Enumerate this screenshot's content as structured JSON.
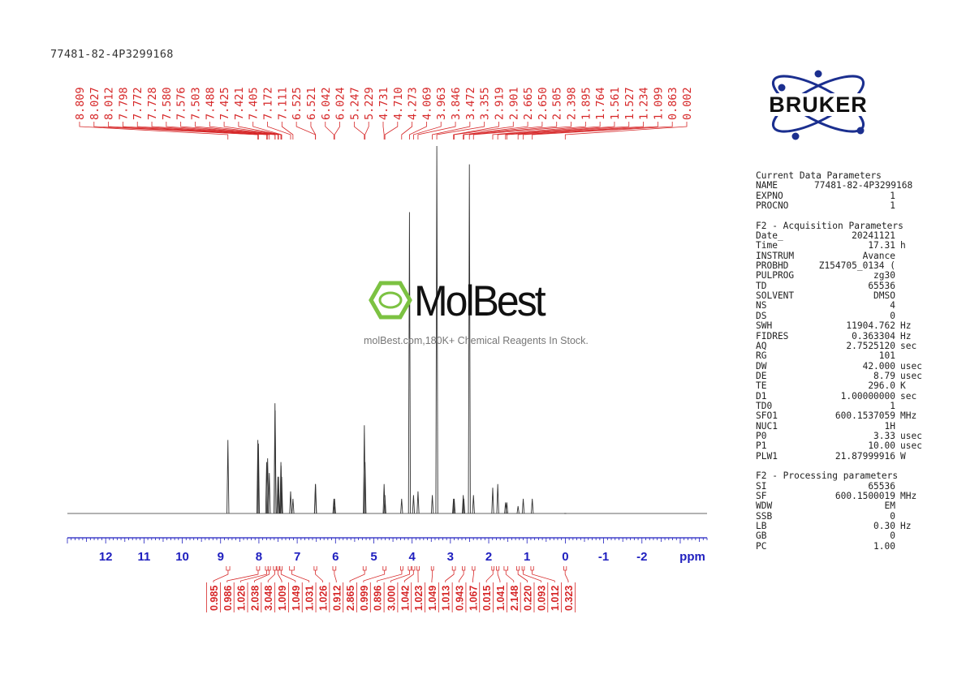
{
  "sample_title": "77481-82-4P3299168",
  "brand": {
    "logo_text": "BRUKER",
    "color": "#1b2f8f"
  },
  "watermark": {
    "logo_text": "MolBest",
    "tagline": "molBest.com,180K+ Chemical Reagents In Stock.",
    "accent": "#7cc242"
  },
  "colors": {
    "peak_labels": "#d62728",
    "axis": "#1f1fbf",
    "spectrum": "#333333"
  },
  "parameters": {
    "current": {
      "heading": "Current Data Parameters",
      "rows": [
        {
          "name": "NAME",
          "value": "77481-82-4P3299168",
          "unit": ""
        },
        {
          "name": "EXPNO",
          "value": "1",
          "unit": ""
        },
        {
          "name": "PROCNO",
          "value": "1",
          "unit": ""
        }
      ]
    },
    "acquisition": {
      "heading": "F2 - Acquisition Parameters",
      "rows": [
        {
          "name": "Date_",
          "value": "20241121",
          "unit": ""
        },
        {
          "name": "Time",
          "value": "17.31",
          "unit": "h"
        },
        {
          "name": "INSTRUM",
          "value": "Avance",
          "unit": ""
        },
        {
          "name": "PROBHD",
          "value": "Z154705_0134 (",
          "unit": ""
        },
        {
          "name": "PULPROG",
          "value": "zg30",
          "unit": ""
        },
        {
          "name": "TD",
          "value": "65536",
          "unit": ""
        },
        {
          "name": "SOLVENT",
          "value": "DMSO",
          "unit": ""
        },
        {
          "name": "NS",
          "value": "4",
          "unit": ""
        },
        {
          "name": "DS",
          "value": "0",
          "unit": ""
        },
        {
          "name": "SWH",
          "value": "11904.762",
          "unit": "Hz"
        },
        {
          "name": "FIDRES",
          "value": "0.363304",
          "unit": "Hz"
        },
        {
          "name": "AQ",
          "value": "2.7525120",
          "unit": "sec"
        },
        {
          "name": "RG",
          "value": "101",
          "unit": ""
        },
        {
          "name": "DW",
          "value": "42.000",
          "unit": "usec"
        },
        {
          "name": "DE",
          "value": "8.79",
          "unit": "usec"
        },
        {
          "name": "TE",
          "value": "296.0",
          "unit": "K"
        },
        {
          "name": "D1",
          "value": "1.00000000",
          "unit": "sec"
        },
        {
          "name": "TD0",
          "value": "1",
          "unit": ""
        },
        {
          "name": "SFO1",
          "value": "600.1537059",
          "unit": "MHz"
        },
        {
          "name": "NUC1",
          "value": "1H",
          "unit": ""
        },
        {
          "name": "P0",
          "value": "3.33",
          "unit": "usec"
        },
        {
          "name": "P1",
          "value": "10.00",
          "unit": "usec"
        },
        {
          "name": "PLW1",
          "value": "21.87999916",
          "unit": "W"
        }
      ]
    },
    "processing": {
      "heading": "F2 - Processing parameters",
      "rows": [
        {
          "name": "SI",
          "value": "65536",
          "unit": ""
        },
        {
          "name": "SF",
          "value": "600.1500019",
          "unit": "MHz"
        },
        {
          "name": "WDW",
          "value": "EM",
          "unit": ""
        },
        {
          "name": "SSB",
          "value": "0",
          "unit": ""
        },
        {
          "name": "LB",
          "value": "0.30",
          "unit": "Hz"
        },
        {
          "name": "GB",
          "value": "0",
          "unit": ""
        },
        {
          "name": "PC",
          "value": "1.00",
          "unit": ""
        }
      ]
    }
  },
  "chart_data": {
    "type": "line",
    "xlabel": "ppm",
    "xlim": [
      13.0,
      -3.7
    ],
    "x_reversed": true,
    "x_ticks": [
      12,
      11,
      10,
      9,
      8,
      7,
      6,
      5,
      4,
      3,
      2,
      1,
      0,
      -1,
      -2
    ],
    "x_tick_labels": [
      "12",
      "11",
      "10",
      "9",
      "8",
      "7",
      "6",
      "5",
      "4",
      "3",
      "2",
      "1",
      "0",
      "-1",
      "-2"
    ],
    "peak_labels": [
      "8.809",
      "8.027",
      "8.012",
      "7.798",
      "7.772",
      "7.728",
      "7.580",
      "7.576",
      "7.503",
      "7.488",
      "7.425",
      "7.421",
      "7.405",
      "7.172",
      "7.111",
      "6.525",
      "6.521",
      "6.042",
      "6.024",
      "5.247",
      "5.229",
      "4.731",
      "4.710",
      "4.273",
      "4.069",
      "3.963",
      "3.846",
      "3.472",
      "3.355",
      "2.919",
      "2.901",
      "2.665",
      "2.650",
      "2.505",
      "2.398",
      "1.895",
      "1.764",
      "1.561",
      "1.527",
      "1.234",
      "1.099",
      "0.863",
      "0.002"
    ],
    "integrals": [
      {
        "from": 8.85,
        "to": 8.76,
        "value": "0.985"
      },
      {
        "from": 8.06,
        "to": 7.98,
        "value": "0.986"
      },
      {
        "from": 7.83,
        "to": 7.76,
        "value": "1.026"
      },
      {
        "from": 7.76,
        "to": 7.7,
        "value": "2.038"
      },
      {
        "from": 7.62,
        "to": 7.55,
        "value": "3.048"
      },
      {
        "from": 7.53,
        "to": 7.47,
        "value": "1.009"
      },
      {
        "from": 7.45,
        "to": 7.39,
        "value": "1.049"
      },
      {
        "from": 7.2,
        "to": 7.08,
        "value": "1.031"
      },
      {
        "from": 6.56,
        "to": 6.49,
        "value": "1.026"
      },
      {
        "from": 6.07,
        "to": 5.99,
        "value": "0.912"
      },
      {
        "from": 5.28,
        "to": 5.2,
        "value": "2.865"
      },
      {
        "from": 4.76,
        "to": 4.68,
        "value": "0.999"
      },
      {
        "from": 4.3,
        "to": 4.24,
        "value": "0.896"
      },
      {
        "from": 4.1,
        "to": 4.03,
        "value": "3.000"
      },
      {
        "from": 4.0,
        "to": 3.93,
        "value": "1.042"
      },
      {
        "from": 3.88,
        "to": 3.81,
        "value": "1.023"
      },
      {
        "from": 3.5,
        "to": 3.44,
        "value": "1.049"
      },
      {
        "from": 2.95,
        "to": 2.87,
        "value": "1.013"
      },
      {
        "from": 2.69,
        "to": 2.62,
        "value": "0.943"
      },
      {
        "from": 2.43,
        "to": 2.36,
        "value": "1.067"
      },
      {
        "from": 1.92,
        "to": 1.86,
        "value": "0.015"
      },
      {
        "from": 1.8,
        "to": 1.73,
        "value": "1.041"
      },
      {
        "from": 1.6,
        "to": 1.5,
        "value": "2.148"
      },
      {
        "from": 1.27,
        "to": 1.2,
        "value": "0.220"
      },
      {
        "from": 1.13,
        "to": 1.07,
        "value": "0.093"
      },
      {
        "from": 0.9,
        "to": 0.83,
        "value": "1.012"
      },
      {
        "from": 0.04,
        "to": -0.03,
        "value": "0.323"
      }
    ],
    "peaks": [
      {
        "x": 8.809,
        "y": 0.2
      },
      {
        "x": 8.027,
        "y": 0.2
      },
      {
        "x": 8.012,
        "y": 0.19
      },
      {
        "x": 7.798,
        "y": 0.14
      },
      {
        "x": 7.772,
        "y": 0.15
      },
      {
        "x": 7.728,
        "y": 0.11
      },
      {
        "x": 7.58,
        "y": 0.3
      },
      {
        "x": 7.576,
        "y": 0.28
      },
      {
        "x": 7.503,
        "y": 0.1
      },
      {
        "x": 7.488,
        "y": 0.1
      },
      {
        "x": 7.425,
        "y": 0.14
      },
      {
        "x": 7.421,
        "y": 0.13
      },
      {
        "x": 7.405,
        "y": 0.1
      },
      {
        "x": 7.172,
        "y": 0.06
      },
      {
        "x": 7.111,
        "y": 0.04
      },
      {
        "x": 6.525,
        "y": 0.08
      },
      {
        "x": 6.521,
        "y": 0.08
      },
      {
        "x": 6.042,
        "y": 0.04
      },
      {
        "x": 6.024,
        "y": 0.04
      },
      {
        "x": 5.247,
        "y": 0.24
      },
      {
        "x": 5.229,
        "y": 0.14
      },
      {
        "x": 4.731,
        "y": 0.08
      },
      {
        "x": 4.71,
        "y": 0.05
      },
      {
        "x": 4.273,
        "y": 0.04
      },
      {
        "x": 4.069,
        "y": 0.82
      },
      {
        "x": 3.963,
        "y": 0.05
      },
      {
        "x": 3.846,
        "y": 0.06
      },
      {
        "x": 3.472,
        "y": 0.05
      },
      {
        "x": 3.355,
        "y": 1.0
      },
      {
        "x": 2.919,
        "y": 0.04
      },
      {
        "x": 2.901,
        "y": 0.04
      },
      {
        "x": 2.665,
        "y": 0.05
      },
      {
        "x": 2.65,
        "y": 0.04
      },
      {
        "x": 2.505,
        "y": 0.95
      },
      {
        "x": 2.398,
        "y": 0.05
      },
      {
        "x": 1.895,
        "y": 0.07
      },
      {
        "x": 1.764,
        "y": 0.08
      },
      {
        "x": 1.561,
        "y": 0.03
      },
      {
        "x": 1.527,
        "y": 0.03
      },
      {
        "x": 1.234,
        "y": 0.02
      },
      {
        "x": 1.099,
        "y": 0.04
      },
      {
        "x": 0.863,
        "y": 0.04
      },
      {
        "x": 0.002,
        "y": 0.0
      }
    ]
  }
}
